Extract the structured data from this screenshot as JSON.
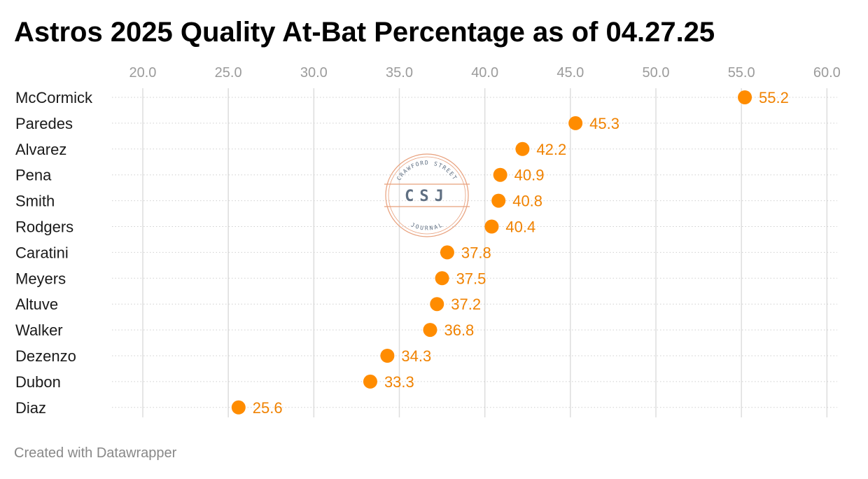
{
  "page": {
    "title": "Astros 2025 Quality At-Bat Percentage as of 04.27.25",
    "footer": "Created with Datawrapper"
  },
  "watermark": {
    "top_text": "CRAWFORD STREET",
    "center_text": "CSJ",
    "bottom_text": "JOURNAL",
    "ring_color": "#e8a07c",
    "text_color": "#5f6f82"
  },
  "colors": {
    "dot": "#ff8c00",
    "value_text": "#f08200",
    "gridline": "#dddddd",
    "row_line": "#cfcfcf"
  },
  "chart_data": {
    "type": "scatter",
    "title": "Astros 2025 Quality At-Bat Percentage as of 04.27.25",
    "xlabel": "",
    "ylabel": "",
    "xlim": [
      18.2,
      60.6
    ],
    "x_ticks": [
      "20.0",
      "25.0",
      "30.0",
      "35.0",
      "40.0",
      "45.0",
      "50.0",
      "55.0",
      "60.0"
    ],
    "x_axis_position": "top",
    "grid": true,
    "categories": [
      "McCormick",
      "Paredes",
      "Alvarez",
      "Pena",
      "Smith",
      "Rodgers",
      "Caratini",
      "Meyers",
      "Altuve",
      "Walker",
      "Dezenzo",
      "Dubon",
      "Diaz"
    ],
    "values": [
      55.2,
      45.3,
      42.2,
      40.9,
      40.8,
      40.4,
      37.8,
      37.5,
      37.2,
      36.8,
      34.3,
      33.3,
      25.6
    ],
    "value_labels": [
      "55.2",
      "45.3",
      "42.2",
      "40.9",
      "40.8",
      "40.4",
      "37.8",
      "37.5",
      "37.2",
      "36.8",
      "34.3",
      "33.3",
      "25.6"
    ]
  }
}
